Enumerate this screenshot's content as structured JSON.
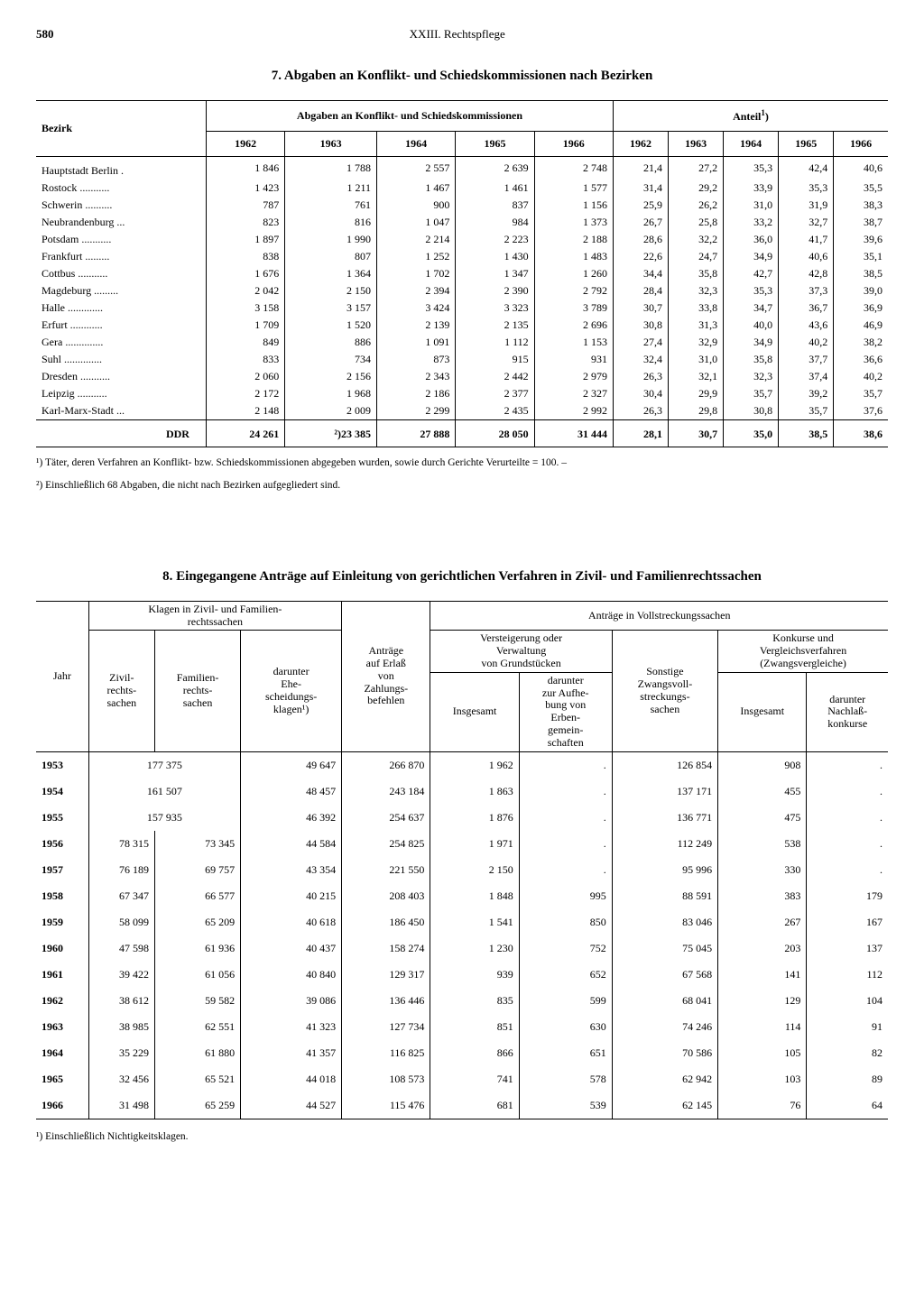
{
  "header": {
    "page": "580",
    "chapter": "XXIII. Rechtspflege"
  },
  "sect7": {
    "title": "7. Abgaben an Konflikt- und Schiedskommissionen nach Bezirken",
    "col_bezirk": "Bezirk",
    "group_abgaben": "Abgaben an Konflikt- und Schiedskommissionen",
    "group_anteil": "Anteil",
    "years": [
      "1962",
      "1963",
      "1964",
      "1965",
      "1966"
    ],
    "rows": [
      {
        "n": "Hauptstadt Berlin .",
        "a": [
          "1 846",
          "1 788",
          "2 557",
          "2 639",
          "2 748"
        ],
        "p": [
          "21,4",
          "27,2",
          "35,3",
          "42,4",
          "40,6"
        ]
      },
      {
        "n": "Rostock ...........",
        "a": [
          "1 423",
          "1 211",
          "1 467",
          "1 461",
          "1 577"
        ],
        "p": [
          "31,4",
          "29,2",
          "33,9",
          "35,3",
          "35,5"
        ]
      },
      {
        "n": "Schwerin ..........",
        "a": [
          "787",
          "761",
          "900",
          "837",
          "1 156"
        ],
        "p": [
          "25,9",
          "26,2",
          "31,0",
          "31,9",
          "38,3"
        ]
      },
      {
        "n": "Neubrandenburg ...",
        "a": [
          "823",
          "816",
          "1 047",
          "984",
          "1 373"
        ],
        "p": [
          "26,7",
          "25,8",
          "33,2",
          "32,7",
          "38,7"
        ]
      },
      {
        "n": "Potsdam ...........",
        "a": [
          "1 897",
          "1 990",
          "2 214",
          "2 223",
          "2 188"
        ],
        "p": [
          "28,6",
          "32,2",
          "36,0",
          "41,7",
          "39,6"
        ]
      },
      {
        "n": "Frankfurt .........",
        "a": [
          "838",
          "807",
          "1 252",
          "1 430",
          "1 483"
        ],
        "p": [
          "22,6",
          "24,7",
          "34,9",
          "40,6",
          "35,1"
        ]
      },
      {
        "n": "Cottbus ...........",
        "a": [
          "1 676",
          "1 364",
          "1 702",
          "1 347",
          "1 260"
        ],
        "p": [
          "34,4",
          "35,8",
          "42,7",
          "42,8",
          "38,5"
        ]
      },
      {
        "n": "Magdeburg .........",
        "a": [
          "2 042",
          "2 150",
          "2 394",
          "2 390",
          "2 792"
        ],
        "p": [
          "28,4",
          "32,3",
          "35,3",
          "37,3",
          "39,0"
        ]
      },
      {
        "n": "Halle .............",
        "a": [
          "3 158",
          "3 157",
          "3 424",
          "3 323",
          "3 789"
        ],
        "p": [
          "30,7",
          "33,8",
          "34,7",
          "36,7",
          "36,9"
        ]
      },
      {
        "n": "Erfurt ............",
        "a": [
          "1 709",
          "1 520",
          "2 139",
          "2 135",
          "2 696"
        ],
        "p": [
          "30,8",
          "31,3",
          "40,0",
          "43,6",
          "46,9"
        ]
      },
      {
        "n": "Gera ..............",
        "a": [
          "849",
          "886",
          "1 091",
          "1 112",
          "1 153"
        ],
        "p": [
          "27,4",
          "32,9",
          "34,9",
          "40,2",
          "38,2"
        ]
      },
      {
        "n": "Suhl ..............",
        "a": [
          "833",
          "734",
          "873",
          "915",
          "931"
        ],
        "p": [
          "32,4",
          "31,0",
          "35,8",
          "37,7",
          "36,6"
        ]
      },
      {
        "n": "Dresden ...........",
        "a": [
          "2 060",
          "2 156",
          "2 343",
          "2 442",
          "2 979"
        ],
        "p": [
          "26,3",
          "32,1",
          "32,3",
          "37,4",
          "40,2"
        ]
      },
      {
        "n": "Leipzig ...........",
        "a": [
          "2 172",
          "1 968",
          "2 186",
          "2 377",
          "2 327"
        ],
        "p": [
          "30,4",
          "29,9",
          "35,7",
          "39,2",
          "35,7"
        ]
      },
      {
        "n": "Karl-Marx-Stadt ...",
        "a": [
          "2 148",
          "2 009",
          "2 299",
          "2 435",
          "2 992"
        ],
        "p": [
          "26,3",
          "29,8",
          "30,8",
          "35,7",
          "37,6"
        ]
      }
    ],
    "ddr": {
      "n": "DDR",
      "a": [
        "24 261",
        "²)23 385",
        "27 888",
        "28 050",
        "31 444"
      ],
      "p": [
        "28,1",
        "30,7",
        "35,0",
        "38,5",
        "38,6"
      ]
    },
    "fn1": "¹) Täter, deren Verfahren an Konflikt- bzw. Schiedskommissionen abgegeben wurden, sowie durch Gerichte Verurteilte = 100. –",
    "fn2": "²) Einschließlich 68 Abgaben, die nicht nach Bezirken aufgegliedert sind."
  },
  "sect8": {
    "title": "8. Eingegangene Anträge auf Einleitung von gerichtlichen Verfahren in Zivil- und Familienrechtssachen",
    "h_jahr": "Jahr",
    "h_klagen": "Klagen in Zivil- und Familien-\nrechtssachen",
    "h_zivil": "Zivil-\nrechts-\nsachen",
    "h_familien": "Familien-\nrechts-\nsachen",
    "h_ehe": "darunter\nEhe-\nscheidungs-\nklagen¹)",
    "h_zahlung": "Anträge\nauf Erlaß\nvon\nZahlungs-\nbefehlen",
    "h_vollstr": "Anträge in Vollstreckungssachen",
    "h_verst": "Versteigerung oder\nVerwaltung\nvon Grundstücken",
    "h_insg": "Insgesamt",
    "h_erben": "darunter\nzur Aufhe-\nbung von\nErben-\ngemein-\nschaften",
    "h_sonst": "Sonstige\nZwangsvoll-\nstreckungs-\nsachen",
    "h_konk": "Konkurse und\nVergleichsverfahren\n(Zwangsvergleiche)",
    "h_nachl": "darunter\nNachlaß-\nkonkurse",
    "rows": [
      {
        "y": "1953",
        "zf": "177 375",
        "z": null,
        "f": null,
        "e": "49 647",
        "zb": "266 870",
        "vi": "1 962",
        "ve": ".",
        "s": "126 854",
        "ki": "908",
        "kn": "."
      },
      {
        "y": "1954",
        "zf": "161 507",
        "z": null,
        "f": null,
        "e": "48 457",
        "zb": "243 184",
        "vi": "1 863",
        "ve": ".",
        "s": "137 171",
        "ki": "455",
        "kn": "."
      },
      {
        "y": "1955",
        "zf": "157 935",
        "z": null,
        "f": null,
        "e": "46 392",
        "zb": "254 637",
        "vi": "1 876",
        "ve": ".",
        "s": "136 771",
        "ki": "475",
        "kn": "."
      },
      {
        "y": "1956",
        "z": "78 315",
        "f": "73 345",
        "e": "44 584",
        "zb": "254 825",
        "vi": "1 971",
        "ve": ".",
        "s": "112 249",
        "ki": "538",
        "kn": "."
      },
      {
        "y": "1957",
        "z": "76 189",
        "f": "69 757",
        "e": "43 354",
        "zb": "221 550",
        "vi": "2 150",
        "ve": ".",
        "s": "95 996",
        "ki": "330",
        "kn": "."
      },
      {
        "y": "1958",
        "z": "67 347",
        "f": "66 577",
        "e": "40 215",
        "zb": "208 403",
        "vi": "1 848",
        "ve": "995",
        "s": "88 591",
        "ki": "383",
        "kn": "179"
      },
      {
        "y": "1959",
        "z": "58 099",
        "f": "65 209",
        "e": "40 618",
        "zb": "186 450",
        "vi": "1 541",
        "ve": "850",
        "s": "83 046",
        "ki": "267",
        "kn": "167"
      },
      {
        "y": "1960",
        "z": "47 598",
        "f": "61 936",
        "e": "40 437",
        "zb": "158 274",
        "vi": "1 230",
        "ve": "752",
        "s": "75 045",
        "ki": "203",
        "kn": "137"
      },
      {
        "y": "1961",
        "z": "39 422",
        "f": "61 056",
        "e": "40 840",
        "zb": "129 317",
        "vi": "939",
        "ve": "652",
        "s": "67 568",
        "ki": "141",
        "kn": "112"
      },
      {
        "y": "1962",
        "z": "38 612",
        "f": "59 582",
        "e": "39 086",
        "zb": "136 446",
        "vi": "835",
        "ve": "599",
        "s": "68 041",
        "ki": "129",
        "kn": "104"
      },
      {
        "y": "1963",
        "z": "38 985",
        "f": "62 551",
        "e": "41 323",
        "zb": "127 734",
        "vi": "851",
        "ve": "630",
        "s": "74 246",
        "ki": "114",
        "kn": "91"
      },
      {
        "y": "1964",
        "z": "35 229",
        "f": "61 880",
        "e": "41 357",
        "zb": "116 825",
        "vi": "866",
        "ve": "651",
        "s": "70 586",
        "ki": "105",
        "kn": "82"
      },
      {
        "y": "1965",
        "z": "32 456",
        "f": "65 521",
        "e": "44 018",
        "zb": "108 573",
        "vi": "741",
        "ve": "578",
        "s": "62 942",
        "ki": "103",
        "kn": "89"
      },
      {
        "y": "1966",
        "z": "31 498",
        "f": "65 259",
        "e": "44 527",
        "zb": "115 476",
        "vi": "681",
        "ve": "539",
        "s": "62 145",
        "ki": "76",
        "kn": "64"
      }
    ],
    "fn": "¹) Einschließlich Nichtigkeitsklagen."
  }
}
